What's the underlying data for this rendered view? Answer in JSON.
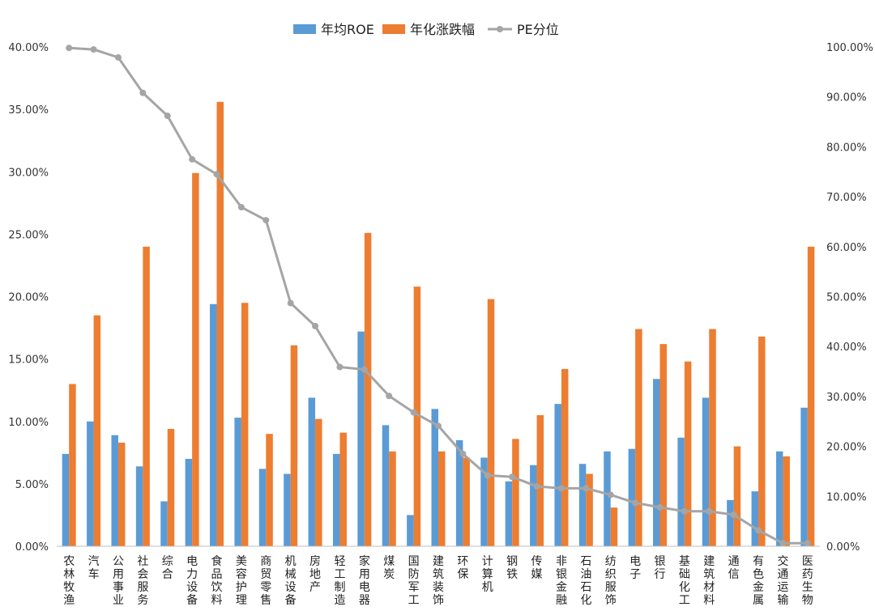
{
  "chart_data": {
    "type": "bar",
    "title": "",
    "xlabel": "",
    "ylabel": "",
    "ylim": [
      0,
      40
    ],
    "y2lim": [
      0,
      100
    ],
    "y_ticks": [
      "0.00%",
      "5.00%",
      "10.00%",
      "15.00%",
      "20.00%",
      "25.00%",
      "30.00%",
      "35.00%",
      "40.00%"
    ],
    "y2_ticks": [
      "0.00%",
      "10.00%",
      "20.00%",
      "30.00%",
      "40.00%",
      "50.00%",
      "60.00%",
      "70.00%",
      "80.00%",
      "90.00%",
      "100.00%"
    ],
    "grid": false,
    "legend_position": "top",
    "categories": [
      "农林牧渔",
      "汽车",
      "公用事业",
      "社会服务",
      "综合",
      "电力设备",
      "食品饮料",
      "美容护理",
      "商贸零售",
      "机械设备",
      "房地产",
      "轻工制造",
      "家用电器",
      "煤炭",
      "国防军工",
      "建筑装饰",
      "环保",
      "计算机",
      "钢铁",
      "传媒",
      "非银金融",
      "石油石化",
      "纺织服饰",
      "电子",
      "银行",
      "基础化工",
      "建筑材料",
      "通信",
      "有色金属",
      "交通运输",
      "医药生物"
    ],
    "series": [
      {
        "name": "年均ROE",
        "type": "bar",
        "axis": "left",
        "color": "#5b9bd5",
        "values": [
          7.4,
          10.0,
          8.9,
          6.4,
          3.6,
          7.0,
          19.4,
          10.3,
          6.2,
          5.8,
          11.9,
          7.4,
          17.2,
          9.7,
          2.5,
          11.0,
          8.5,
          7.1,
          5.2,
          6.5,
          11.4,
          6.6,
          7.6,
          7.8,
          13.4,
          8.7,
          11.9,
          3.7,
          4.4,
          7.6,
          11.1
        ]
      },
      {
        "name": "年化涨跌幅",
        "type": "bar",
        "axis": "left",
        "color": "#ed7d31",
        "values": [
          13.0,
          18.5,
          8.3,
          24.0,
          9.4,
          29.9,
          35.6,
          19.5,
          9.0,
          16.1,
          10.2,
          9.1,
          25.1,
          7.6,
          20.8,
          7.6,
          7.1,
          19.8,
          8.6,
          10.5,
          14.2,
          5.8,
          3.1,
          17.4,
          16.2,
          14.8,
          17.4,
          8.0,
          16.8,
          7.2,
          24.0
        ]
      },
      {
        "name": "PE分位",
        "type": "line",
        "axis": "right",
        "color": "#a5a5a5",
        "values": [
          99.8,
          99.5,
          97.9,
          90.8,
          86.2,
          77.5,
          74.5,
          67.9,
          65.3,
          48.7,
          44.1,
          35.9,
          35.4,
          30.1,
          26.8,
          24.1,
          18.5,
          14.2,
          13.9,
          12.0,
          11.6,
          11.6,
          10.3,
          8.7,
          7.8,
          7.0,
          7.0,
          6.3,
          3.2,
          0.6,
          0.6
        ]
      }
    ]
  }
}
